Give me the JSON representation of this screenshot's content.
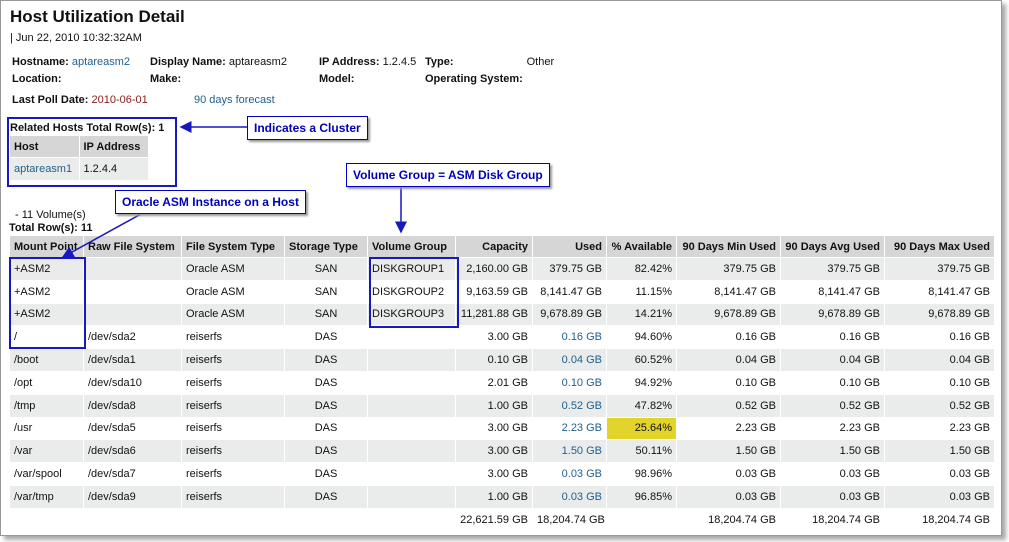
{
  "header": {
    "title": "Host Utilization Detail",
    "timestamp": "| Jun 22, 2010 10:32:32AM"
  },
  "host_info": [
    [
      {
        "label": "Hostname:",
        "value": "aptareasm2"
      },
      {
        "label": "Display Name:",
        "value": "aptareasm2"
      },
      {
        "label": "IP Address:",
        "value": "1.2.4.5"
      },
      {
        "label": "Type:",
        "value": "Other"
      }
    ],
    [
      {
        "label": "Location:"
      },
      {
        "label": "Make:"
      },
      {
        "label": "Model:"
      },
      {
        "label": "Operating System:"
      }
    ]
  ],
  "last_poll": {
    "label": "Last Poll Date:",
    "value": "2010-06-01",
    "forecast_link": "90 days forecast"
  },
  "related_hosts": {
    "title": "Related Hosts Total Row(s): 1",
    "columns": [
      "Host",
      "IP Address"
    ],
    "rows": [
      [
        "aptareasm1",
        "1.2.4.4"
      ]
    ]
  },
  "callouts": {
    "cluster": "Indicates a Cluster",
    "volume_group": "Volume Group = ASM Disk Group",
    "asm_instance": "Oracle ASM Instance on a Host"
  },
  "volumes": {
    "title": "- 11 Volume(s)",
    "total_rows": "Total Row(s): 11",
    "columns": [
      "Mount Point",
      "Raw File System",
      "File System Type",
      "Storage Type",
      "Volume Group",
      "Capacity",
      "Used",
      "% Available",
      "90 Days Min Used",
      "90 Days Avg Used",
      "90 Days Max Used"
    ],
    "rows": [
      [
        "+ASM2",
        null,
        "Oracle ASM",
        "SAN",
        "DISKGROUP1",
        "2,160.00 GB",
        "379.75 GB",
        "82.42%",
        "379.75 GB",
        "379.75 GB",
        "379.75 GB"
      ],
      [
        "+ASM2",
        null,
        "Oracle ASM",
        "SAN",
        "DISKGROUP2",
        "9,163.59 GB",
        "8,141.47 GB",
        "11.15%",
        "8,141.47 GB",
        "8,141.47 GB",
        "8,141.47 GB"
      ],
      [
        "+ASM2",
        null,
        "Oracle ASM",
        "SAN",
        "DISKGROUP3",
        "11,281.88 GB",
        "9,678.89 GB",
        "14.21%",
        "9,678.89 GB",
        "9,678.89 GB",
        "9,678.89 GB"
      ],
      [
        "/",
        "/dev/sda2",
        "reiserfs",
        "DAS",
        null,
        "3.00 GB",
        "0.16 GB",
        "94.60%",
        "0.16 GB",
        "0.16 GB",
        "0.16 GB"
      ],
      [
        "/boot",
        "/dev/sda1",
        "reiserfs",
        "DAS",
        null,
        "0.10 GB",
        "0.04 GB",
        "60.52%",
        "0.04 GB",
        "0.04 GB",
        "0.04 GB"
      ],
      [
        "/opt",
        "/dev/sda10",
        "reiserfs",
        "DAS",
        null,
        "2.01 GB",
        "0.10 GB",
        "94.92%",
        "0.10 GB",
        "0.10 GB",
        "0.10 GB"
      ],
      [
        "/tmp",
        "/dev/sda8",
        "reiserfs",
        "DAS",
        null,
        "1.00 GB",
        "0.52 GB",
        "47.82%",
        "0.52 GB",
        "0.52 GB",
        "0.52 GB"
      ],
      [
        "/usr",
        "/dev/sda5",
        "reiserfs",
        "DAS",
        null,
        "3.00 GB",
        "2.23 GB",
        "25.64%",
        "2.23 GB",
        "2.23 GB",
        "2.23 GB"
      ],
      [
        "/var",
        "/dev/sda6",
        "reiserfs",
        "DAS",
        null,
        "3.00 GB",
        "1.50 GB",
        "50.11%",
        "1.50 GB",
        "1.50 GB",
        "1.50 GB"
      ],
      [
        "/var/spool",
        "/dev/sda7",
        "reiserfs",
        "DAS",
        null,
        "3.00 GB",
        "0.03 GB",
        "98.96%",
        "0.03 GB",
        "0.03 GB",
        "0.03 GB"
      ],
      [
        "/var/tmp",
        "/dev/sda9",
        "reiserfs",
        "DAS",
        null,
        "1.00 GB",
        "0.03 GB",
        "96.85%",
        "0.03 GB",
        "0.03 GB",
        "0.03 GB"
      ]
    ],
    "totals": [
      null,
      null,
      null,
      null,
      null,
      "22,621.59 GB",
      "18,204.74 GB",
      null,
      "18,204.74 GB",
      "18,204.74 GB",
      "18,204.74 GB"
    ]
  }
}
